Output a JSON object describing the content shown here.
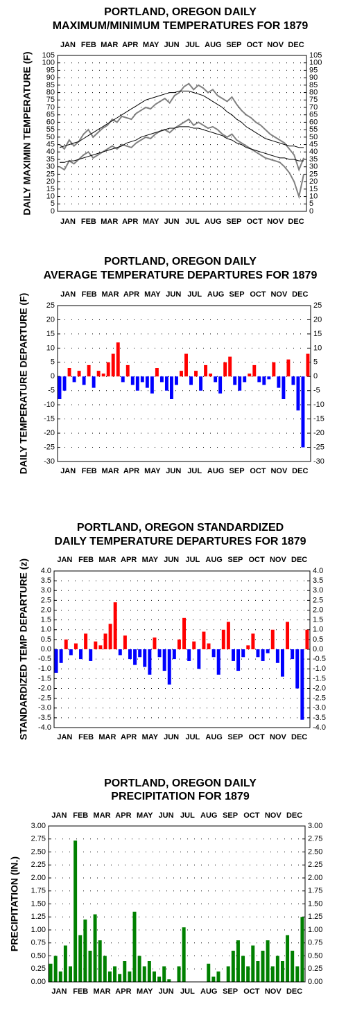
{
  "chart_data": [
    {
      "type": "line",
      "title": [
        "PORTLAND, OREGON DAILY",
        "MAXIMUM/MINIMUM TEMPERATURES FOR 1879"
      ],
      "y_label": "DAILY MAXIMIN TEMPERATURE (F)",
      "months": [
        "JAN",
        "FEB",
        "MAR",
        "APR",
        "MAY",
        "JUN",
        "JUL",
        "AUG",
        "SEP",
        "OCT",
        "NOV",
        "DEC"
      ],
      "x": [
        4,
        11,
        18,
        25,
        32,
        39,
        46,
        53,
        60,
        67,
        74,
        81,
        88,
        95,
        102,
        109,
        116,
        123,
        130,
        137,
        144,
        151,
        158,
        165,
        172,
        179,
        186,
        193,
        200,
        207,
        214,
        221,
        228,
        235,
        242,
        249,
        256,
        263,
        270,
        277,
        284,
        291,
        298,
        305,
        312,
        319,
        326,
        333,
        340,
        347,
        354,
        361
      ],
      "xlim": [
        1,
        365
      ],
      "series": [
        {
          "color": "#808080",
          "values": [
            45,
            42,
            48,
            44,
            47,
            52,
            55,
            50,
            53,
            56,
            58,
            62,
            60,
            64,
            63,
            62,
            66,
            68,
            70,
            69,
            72,
            74,
            76,
            73,
            78,
            80,
            84,
            86,
            82,
            85,
            83,
            80,
            82,
            78,
            76,
            74,
            77,
            72,
            68,
            65,
            63,
            60,
            58,
            55,
            52,
            50,
            48,
            46,
            42,
            38,
            28,
            36
          ]
        },
        {
          "color": "#808080",
          "values": [
            30,
            28,
            34,
            32,
            35,
            38,
            40,
            36,
            38,
            40,
            42,
            44,
            42,
            45,
            44,
            43,
            46,
            48,
            50,
            49,
            52,
            54,
            55,
            53,
            56,
            58,
            60,
            62,
            58,
            60,
            58,
            56,
            57,
            55,
            52,
            50,
            52,
            48,
            46,
            44,
            42,
            40,
            38,
            36,
            35,
            34,
            33,
            30,
            26,
            20,
            10,
            25
          ]
        },
        {
          "color": "#000000",
          "values": [
            43,
            44,
            45,
            46,
            47,
            49,
            51,
            53,
            55,
            57,
            59,
            61,
            63,
            65,
            67,
            69,
            71,
            73,
            75,
            76,
            77,
            78,
            79,
            80,
            80,
            81,
            81,
            81,
            80,
            79,
            78,
            76,
            74,
            72,
            70,
            67,
            65,
            62,
            60,
            57,
            55,
            53,
            51,
            49,
            48,
            47,
            46,
            45,
            44,
            44,
            43,
            43
          ]
        },
        {
          "color": "#000000",
          "values": [
            33,
            33,
            34,
            34,
            35,
            36,
            37,
            38,
            39,
            40,
            41,
            42,
            43,
            44,
            46,
            47,
            48,
            50,
            51,
            52,
            53,
            54,
            55,
            56,
            56,
            57,
            57,
            57,
            56,
            56,
            55,
            54,
            53,
            52,
            51,
            49,
            48,
            46,
            45,
            43,
            42,
            41,
            40,
            39,
            38,
            37,
            36,
            36,
            35,
            35,
            34,
            34
          ]
        }
      ],
      "ylim": [
        0,
        105
      ],
      "yticks": [
        0,
        5,
        10,
        15,
        20,
        25,
        30,
        35,
        40,
        45,
        50,
        55,
        60,
        65,
        70,
        75,
        80,
        85,
        90,
        95,
        100,
        105
      ],
      "grid": true
    },
    {
      "type": "bar",
      "title": [
        "PORTLAND, OREGON DAILY",
        "AVERAGE TEMPERATURE DEPARTURES FOR 1879"
      ],
      "y_label": "DAILY TEMPERATURE DEPARTURE (F)",
      "months": [
        "JAN",
        "FEB",
        "MAR",
        "APR",
        "MAY",
        "JUN",
        "JUL",
        "AUG",
        "SEP",
        "OCT",
        "NOV",
        "DEC"
      ],
      "x": [
        4,
        11,
        18,
        25,
        32,
        39,
        46,
        53,
        60,
        67,
        74,
        81,
        88,
        95,
        102,
        109,
        116,
        123,
        130,
        137,
        144,
        151,
        158,
        165,
        172,
        179,
        186,
        193,
        200,
        207,
        214,
        221,
        228,
        235,
        242,
        249,
        256,
        263,
        270,
        277,
        284,
        291,
        298,
        305,
        312,
        319,
        326,
        333,
        340,
        347,
        354,
        361
      ],
      "xlim": [
        1,
        365
      ],
      "values": [
        -8,
        -5,
        3,
        -2,
        2,
        -3,
        4,
        -4,
        2,
        1,
        5,
        8,
        12,
        -2,
        4,
        -3,
        -5,
        -2,
        -4,
        -6,
        3,
        -2,
        -5,
        -8,
        -3,
        2,
        8,
        -3,
        2,
        -5,
        4,
        1,
        -2,
        -6,
        5,
        7,
        -3,
        -5,
        -2,
        1,
        4,
        -2,
        -3,
        -1,
        5,
        -4,
        -8,
        6,
        -3,
        -12,
        -25,
        8
      ],
      "pos_color": "#ff0000",
      "neg_color": "#0000ff",
      "ylim": [
        -30,
        25
      ],
      "yticks": [
        -30,
        -25,
        -20,
        -15,
        -10,
        -5,
        0,
        5,
        10,
        15,
        20,
        25
      ],
      "grid": true
    },
    {
      "type": "bar",
      "title": [
        "PORTLAND, OREGON STANDARDIZED",
        "DAILY TEMPERATURE DEPARTURES FOR 1879"
      ],
      "y_label": "STANDARDIZED TEMP DEPARTURE (z)",
      "months": [
        "JAN",
        "FEB",
        "MAR",
        "APR",
        "MAY",
        "JUN",
        "JUL",
        "AUG",
        "SEP",
        "OCT",
        "NOV",
        "DEC"
      ],
      "x": [
        4,
        11,
        18,
        25,
        32,
        39,
        46,
        53,
        60,
        67,
        74,
        81,
        88,
        95,
        102,
        109,
        116,
        123,
        130,
        137,
        144,
        151,
        158,
        165,
        172,
        179,
        186,
        193,
        200,
        207,
        214,
        221,
        228,
        235,
        242,
        249,
        256,
        263,
        270,
        277,
        284,
        291,
        298,
        305,
        312,
        319,
        326,
        333,
        340,
        347,
        354,
        361
      ],
      "xlim": [
        1,
        365
      ],
      "values": [
        -1.2,
        -0.7,
        0.5,
        -0.3,
        0.3,
        -0.5,
        0.8,
        -0.6,
        0.4,
        0.2,
        0.8,
        1.3,
        2.4,
        -0.3,
        0.7,
        -0.5,
        -0.8,
        -0.4,
        -0.9,
        -1.3,
        0.6,
        -0.4,
        -1.1,
        -1.8,
        -0.5,
        0.5,
        1.6,
        -0.6,
        0.4,
        -1.0,
        0.9,
        0.3,
        -0.4,
        -1.3,
        1.0,
        1.4,
        -0.6,
        -1.1,
        -0.4,
        0.2,
        0.8,
        -0.4,
        -0.6,
        -0.2,
        1.0,
        -0.7,
        -1.4,
        1.4,
        -0.5,
        -2.0,
        -3.6,
        1.0
      ],
      "pos_color": "#ff0000",
      "neg_color": "#0000ff",
      "ylim": [
        -4,
        4
      ],
      "yticks": [
        {
          "value": -4,
          "label": "-4.0"
        },
        {
          "value": -3.5,
          "label": "-3.5"
        },
        {
          "value": -3,
          "label": "-3.0"
        },
        {
          "value": -2.5,
          "label": "-2.5"
        },
        {
          "value": -2,
          "label": "-2.0"
        },
        {
          "value": -1.5,
          "label": "-1.5"
        },
        {
          "value": -1,
          "label": "-1.0"
        },
        {
          "value": -0.5,
          "label": "-0.5"
        },
        {
          "value": 0,
          "label": "0.0"
        },
        {
          "value": 0.5,
          "label": "0.5"
        },
        {
          "value": 1,
          "label": "1.0"
        },
        {
          "value": 1.5,
          "label": "1.5"
        },
        {
          "value": 2,
          "label": "2.0"
        },
        {
          "value": 2.5,
          "label": "2.5"
        },
        {
          "value": 3,
          "label": "3.0"
        },
        {
          "value": 3.5,
          "label": "3.5"
        },
        {
          "value": 4,
          "label": "4.0"
        }
      ],
      "grid": true
    },
    {
      "type": "bar",
      "title": [
        "PORTLAND, OREGON DAILY",
        "PRECIPITATION FOR 1879"
      ],
      "y_label": "PRECIPITATION (IN.)",
      "months": [
        "JAN",
        "FEB",
        "MAR",
        "APR",
        "MAY",
        "JUN",
        "JUL",
        "AUG",
        "SEP",
        "OCT",
        "NOV",
        "DEC"
      ],
      "x": [
        4,
        11,
        18,
        25,
        32,
        39,
        46,
        53,
        60,
        67,
        74,
        81,
        88,
        95,
        102,
        109,
        116,
        123,
        130,
        137,
        144,
        151,
        158,
        165,
        172,
        179,
        186,
        193,
        200,
        207,
        214,
        221,
        228,
        235,
        242,
        249,
        256,
        263,
        270,
        277,
        284,
        291,
        298,
        305,
        312,
        319,
        326,
        333,
        340,
        347,
        354,
        361
      ],
      "xlim": [
        1,
        365
      ],
      "values": [
        0.35,
        0.5,
        0.2,
        0.7,
        0.3,
        2.72,
        0.9,
        1.2,
        0.6,
        1.3,
        0.8,
        0.5,
        0.2,
        0.3,
        0.15,
        0.4,
        0.2,
        1.35,
        0.5,
        0.3,
        0.4,
        0.2,
        0.1,
        0.3,
        0.05,
        0,
        0.3,
        1.05,
        0,
        0,
        0,
        0,
        0.35,
        0.1,
        0.2,
        0,
        0.3,
        0.6,
        0.8,
        0.5,
        0.3,
        0.7,
        0.4,
        0.6,
        0.8,
        0.3,
        0.5,
        0.4,
        0.9,
        0.6,
        0.3,
        1.25
      ],
      "pos_color": "#008000",
      "neg_color": "#008000",
      "ylim": [
        0,
        3
      ],
      "yticks": [
        {
          "value": 0,
          "label": "0.00"
        },
        {
          "value": 0.25,
          "label": "0.25"
        },
        {
          "value": 0.5,
          "label": "0.50"
        },
        {
          "value": 0.75,
          "label": "0.75"
        },
        {
          "value": 1,
          "label": "1.00"
        },
        {
          "value": 1.25,
          "label": "1.25"
        },
        {
          "value": 1.5,
          "label": "1.50"
        },
        {
          "value": 1.75,
          "label": "1.75"
        },
        {
          "value": 2,
          "label": "2.00"
        },
        {
          "value": 2.25,
          "label": "2.25"
        },
        {
          "value": 2.5,
          "label": "2.50"
        },
        {
          "value": 2.75,
          "label": "2.75"
        },
        {
          "value": 3,
          "label": "3.00"
        }
      ],
      "grid": true
    }
  ]
}
